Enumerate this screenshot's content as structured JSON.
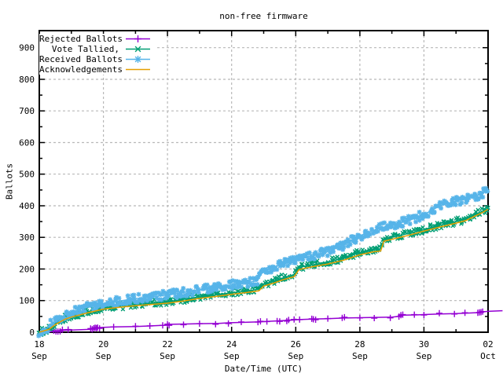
{
  "title": "non-free firmware",
  "xlabel": "Date/Time (UTC)",
  "ylabel": "Ballots",
  "colors": {
    "rejected": "#9400d3",
    "tallied": "#009e73",
    "received": "#56b4e9",
    "acknowledgements": "#e69f00",
    "grid": "#b8b8b8",
    "border": "#000000",
    "background": "#ffffff"
  },
  "chart_data": {
    "type": "line",
    "title": "non-free firmware",
    "xlabel": "Date/Time (UTC)",
    "ylabel": "Ballots",
    "x_unit_note": "t = days since 18 Sep 00:00 UTC",
    "xlim": [
      0,
      14
    ],
    "ylim": [
      0,
      954
    ],
    "grid": true,
    "legend_position": "top-left",
    "x_axis_ticks": [
      {
        "t": 0,
        "day": "18",
        "month": "Sep"
      },
      {
        "t": 2,
        "day": "20",
        "month": "Sep"
      },
      {
        "t": 4,
        "day": "22",
        "month": "Sep"
      },
      {
        "t": 6,
        "day": "24",
        "month": "Sep"
      },
      {
        "t": 8,
        "day": "26",
        "month": "Sep"
      },
      {
        "t": 10,
        "day": "28",
        "month": "Sep"
      },
      {
        "t": 12,
        "day": "30",
        "month": "Sep"
      },
      {
        "t": 14,
        "day": "02",
        "month": "Oct"
      }
    ],
    "x_axis_minor_ticks": [
      1,
      3,
      5,
      7,
      9,
      11,
      13
    ],
    "y_axis_ticks": [
      {
        "v": 0,
        "label": "0"
      },
      {
        "v": 100,
        "label": "100"
      },
      {
        "v": 200,
        "label": "200"
      },
      {
        "v": 300,
        "label": "300"
      },
      {
        "v": 400,
        "label": "400"
      },
      {
        "v": 500,
        "label": "500"
      },
      {
        "v": 600,
        "label": "600"
      },
      {
        "v": 700,
        "label": "700"
      },
      {
        "v": 800,
        "label": "800"
      },
      {
        "v": 900,
        "label": "900"
      }
    ],
    "y_axis_minor_ticks": [
      50,
      150,
      250,
      350,
      450,
      550,
      650,
      750,
      850
    ],
    "series": [
      {
        "id": "rejected-ballots",
        "name": "Rejected Ballots",
        "color": "#9400d3",
        "marker": "plus",
        "band": false,
        "points": [
          [
            0,
            0
          ],
          [
            0.4,
            2
          ],
          [
            0.55,
            4
          ],
          [
            0.75,
            6
          ],
          [
            1,
            7
          ],
          [
            1.55,
            9
          ],
          [
            1.7,
            12
          ],
          [
            1.9,
            15
          ],
          [
            2.3,
            17
          ],
          [
            3,
            18
          ],
          [
            3.5,
            20
          ],
          [
            3.9,
            22
          ],
          [
            4.1,
            25
          ],
          [
            4.6,
            26
          ],
          [
            5,
            27
          ],
          [
            5.6,
            28
          ],
          [
            5.95,
            30
          ],
          [
            6.3,
            31
          ],
          [
            6.9,
            33
          ],
          [
            7.1,
            34
          ],
          [
            7.45,
            36
          ],
          [
            7.8,
            38
          ],
          [
            8.1,
            40
          ],
          [
            8.6,
            42
          ],
          [
            9,
            43
          ],
          [
            9.5,
            45
          ],
          [
            10,
            46
          ],
          [
            10.5,
            47
          ],
          [
            11,
            48
          ],
          [
            11.2,
            50
          ],
          [
            11.35,
            54
          ],
          [
            11.8,
            55
          ],
          [
            12,
            56
          ],
          [
            12.5,
            58
          ],
          [
            13,
            59
          ],
          [
            13.3,
            60
          ],
          [
            13.7,
            62
          ],
          [
            13.8,
            64
          ],
          [
            14,
            66
          ],
          [
            14.45,
            68
          ]
        ],
        "marker_times": [
          0.45,
          0.52,
          0.58,
          0.65,
          0.72,
          0.9,
          1.6,
          1.65,
          1.7,
          1.74,
          1.78,
          1.82,
          1.88,
          2.32,
          3.0,
          3.45,
          3.85,
          4.0,
          4.05,
          4.5,
          5.0,
          5.5,
          5.9,
          6.3,
          6.82,
          6.9,
          7.1,
          7.42,
          7.5,
          7.72,
          7.78,
          7.95,
          8.12,
          8.5,
          8.55,
          8.62,
          9.0,
          9.45,
          9.52,
          10.0,
          10.45,
          10.95,
          11.22,
          11.28,
          11.34,
          11.7,
          12.0,
          12.48,
          12.95,
          13.28,
          13.68,
          13.73,
          13.78,
          13.83
        ]
      },
      {
        "id": "vote-tallied",
        "name": "Vote Tallied,",
        "color": "#009e73",
        "marker": "cross",
        "band": true,
        "points": [
          [
            0,
            0
          ],
          [
            0.3,
            12
          ],
          [
            0.5,
            28
          ],
          [
            0.8,
            45
          ],
          [
            1,
            52
          ],
          [
            1.5,
            65
          ],
          [
            2,
            77
          ],
          [
            2.5,
            83
          ],
          [
            3,
            88
          ],
          [
            3.5,
            92
          ],
          [
            4,
            96
          ],
          [
            4.5,
            104
          ],
          [
            5,
            112
          ],
          [
            5.5,
            118
          ],
          [
            6,
            125
          ],
          [
            6.5,
            131
          ],
          [
            6.85,
            136
          ],
          [
            7.0,
            152
          ],
          [
            7.3,
            161
          ],
          [
            7.6,
            172
          ],
          [
            7.95,
            182
          ],
          [
            8.1,
            205
          ],
          [
            8.5,
            213
          ],
          [
            9,
            222
          ],
          [
            9.5,
            235
          ],
          [
            10,
            252
          ],
          [
            10.4,
            261
          ],
          [
            10.65,
            264
          ],
          [
            10.75,
            293
          ],
          [
            11,
            300
          ],
          [
            11.5,
            312
          ],
          [
            12,
            325
          ],
          [
            12.5,
            338
          ],
          [
            13,
            350
          ],
          [
            13.3,
            358
          ],
          [
            13.6,
            372
          ],
          [
            13.85,
            383
          ],
          [
            14,
            392
          ]
        ]
      },
      {
        "id": "received-ballots",
        "name": "Received Ballots",
        "color": "#56b4e9",
        "marker": "star",
        "band": true,
        "points": [
          [
            0,
            0
          ],
          [
            0.25,
            14
          ],
          [
            0.45,
            32
          ],
          [
            0.7,
            50
          ],
          [
            1,
            63
          ],
          [
            1.5,
            79
          ],
          [
            2,
            90
          ],
          [
            2.5,
            99
          ],
          [
            3,
            106
          ],
          [
            3.5,
            112
          ],
          [
            4,
            118
          ],
          [
            4.5,
            126
          ],
          [
            5,
            134
          ],
          [
            5.5,
            142
          ],
          [
            6,
            150
          ],
          [
            6.5,
            157
          ],
          [
            6.8,
            163
          ],
          [
            6.95,
            188
          ],
          [
            7.2,
            200
          ],
          [
            7.5,
            212
          ],
          [
            7.8,
            222
          ],
          [
            8.1,
            233
          ],
          [
            8.5,
            242
          ],
          [
            9,
            255
          ],
          [
            9.5,
            276
          ],
          [
            10,
            305
          ],
          [
            10.5,
            325
          ],
          [
            11,
            340
          ],
          [
            11.5,
            352
          ],
          [
            12,
            372
          ],
          [
            12.5,
            400
          ],
          [
            13,
            415
          ],
          [
            13.5,
            427
          ],
          [
            13.8,
            437
          ],
          [
            13.9,
            444
          ],
          [
            14,
            455
          ]
        ]
      },
      {
        "id": "acknowledgements",
        "name": "Acknowledgements",
        "color": "#e69f00",
        "marker": "none",
        "band": false,
        "points": [
          [
            0,
            0
          ],
          [
            0.3,
            9
          ],
          [
            0.5,
            24
          ],
          [
            0.8,
            41
          ],
          [
            1,
            48
          ],
          [
            1.5,
            61
          ],
          [
            2,
            73
          ],
          [
            2.5,
            79
          ],
          [
            3,
            84
          ],
          [
            3.5,
            88
          ],
          [
            4,
            92
          ],
          [
            4.5,
            99
          ],
          [
            5,
            107
          ],
          [
            5.5,
            113
          ],
          [
            6,
            120
          ],
          [
            6.5,
            126
          ],
          [
            6.85,
            131
          ],
          [
            7.0,
            146
          ],
          [
            7.3,
            155
          ],
          [
            7.6,
            166
          ],
          [
            7.95,
            176
          ],
          [
            8.1,
            198
          ],
          [
            8.5,
            207
          ],
          [
            9,
            216
          ],
          [
            9.5,
            228
          ],
          [
            10,
            245
          ],
          [
            10.4,
            254
          ],
          [
            10.65,
            257
          ],
          [
            10.75,
            288
          ],
          [
            11,
            294
          ],
          [
            11.5,
            306
          ],
          [
            12,
            320
          ],
          [
            12.5,
            333
          ],
          [
            13,
            345
          ],
          [
            13.3,
            353
          ],
          [
            13.6,
            368
          ],
          [
            13.85,
            380
          ],
          [
            14,
            389
          ]
        ]
      }
    ]
  }
}
